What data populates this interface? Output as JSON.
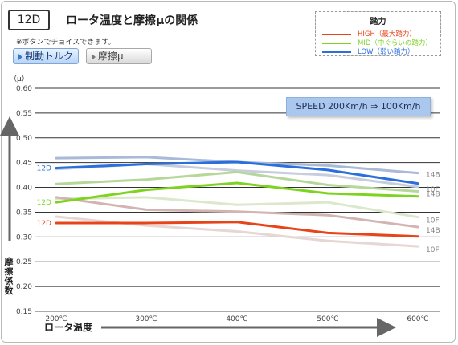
{
  "header": {
    "badge": "12D",
    "title": "ロータ温度と摩擦μの関係",
    "note": "※ボタンでチョイスできます。"
  },
  "buttons": [
    {
      "label": "制動トルク"
    },
    {
      "label": "摩擦μ"
    }
  ],
  "legend": {
    "title": "踏力",
    "items": [
      {
        "label": "HIGH（最大踏力）",
        "color": "#e8441a"
      },
      {
        "label": "MID（中ぐらいの踏力）",
        "color": "#7ed321"
      },
      {
        "label": "LOW（弱い踏力）",
        "color": "#2a6fdc"
      }
    ]
  },
  "speed_label": "SPEED 200Km/h ⇒ 100Km/h",
  "chart_data": {
    "type": "line",
    "ylabel_unit": "（μ）",
    "ylabel": "摩擦係数",
    "xlabel": "ロータ温度",
    "x": [
      200,
      300,
      400,
      500,
      600
    ],
    "x_tick_labels": [
      "200℃",
      "300℃",
      "400℃",
      "500℃",
      "600℃"
    ],
    "ylim": [
      0.15,
      0.6
    ],
    "y_ticks": [
      "0.15",
      "0.20",
      "0.25",
      "0.30",
      "0.35",
      "0.40",
      "0.45",
      "0.50",
      "0.55",
      "0.60"
    ],
    "grid": true,
    "series": [
      {
        "name": "14B",
        "group": "LOW",
        "color": "#a9b9d8",
        "values": [
          0.459,
          0.461,
          0.451,
          0.444,
          0.429
        ]
      },
      {
        "name": "10F",
        "group": "LOW",
        "color": "#c8cddd",
        "values": [
          0.437,
          0.447,
          0.434,
          0.425,
          0.401
        ]
      },
      {
        "name": "12D",
        "group": "LOW",
        "color": "#2a6fdc",
        "values": [
          0.439,
          0.447,
          0.451,
          0.435,
          0.408
        ]
      },
      {
        "name": "14B",
        "group": "MID",
        "color": "#b5d89a",
        "values": [
          0.407,
          0.416,
          0.431,
          0.405,
          0.392
        ]
      },
      {
        "name": "10F",
        "group": "MID",
        "color": "#dbe8cc",
        "values": [
          0.377,
          0.38,
          0.365,
          0.37,
          0.34
        ]
      },
      {
        "name": "12D",
        "group": "MID",
        "color": "#7ed321",
        "values": [
          0.37,
          0.395,
          0.409,
          0.388,
          0.382
        ]
      },
      {
        "name": "14B",
        "group": "HIGH",
        "color": "#d2b5b2",
        "values": [
          0.38,
          0.355,
          0.351,
          0.344,
          0.32
        ]
      },
      {
        "name": "10F",
        "group": "HIGH",
        "color": "#e6d6d4",
        "values": [
          0.341,
          0.323,
          0.311,
          0.292,
          0.281
        ]
      },
      {
        "name": "12D",
        "group": "HIGH",
        "color": "#e8441a",
        "values": [
          0.328,
          0.328,
          0.33,
          0.308,
          0.301
        ]
      }
    ]
  }
}
